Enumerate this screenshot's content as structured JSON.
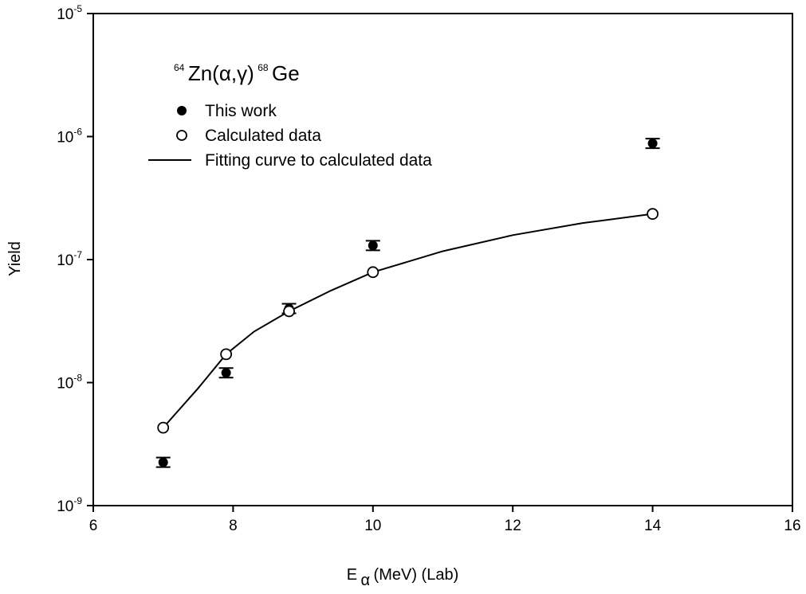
{
  "chart_data": {
    "type": "scatter",
    "title_parts": {
      "sup1": "64",
      "mid": "Zn(α,γ)",
      "sup2": "68",
      "end": "Ge"
    },
    "xlabel": {
      "main": "E",
      "sub": "α",
      "rest": " (MeV) (Lab)"
    },
    "ylabel": "Yield",
    "x_range": [
      6,
      16
    ],
    "x_ticks": [
      "6",
      "8",
      "10",
      "12",
      "14",
      "16"
    ],
    "y_scale": "log",
    "y_range": [
      1e-09,
      1e-05
    ],
    "y_ticks": [
      {
        "base": "10",
        "exp": "-9"
      },
      {
        "base": "10",
        "exp": "-8"
      },
      {
        "base": "10",
        "exp": "-7"
      },
      {
        "base": "10",
        "exp": "-6"
      },
      {
        "base": "10",
        "exp": "-5"
      }
    ],
    "grid": false,
    "legend_position": "top-left",
    "series": [
      {
        "name": "This work",
        "marker": "filled-circle",
        "error_bars": true,
        "points": [
          {
            "x": 7.0,
            "y": 2.25e-09
          },
          {
            "x": 7.9,
            "y": 1.2e-08
          },
          {
            "x": 8.8,
            "y": 4e-08
          },
          {
            "x": 10.0,
            "y": 1.3e-07
          },
          {
            "x": 14.0,
            "y": 8.8e-07
          }
        ]
      },
      {
        "name": "Calculated data",
        "marker": "open-circle",
        "points": [
          {
            "x": 7.0,
            "y": 4.3e-09
          },
          {
            "x": 7.9,
            "y": 1.7e-08
          },
          {
            "x": 8.8,
            "y": 3.8e-08
          },
          {
            "x": 10.0,
            "y": 7.9e-08
          },
          {
            "x": 14.0,
            "y": 2.35e-07
          }
        ]
      },
      {
        "name": "Fitting curve to calculated data",
        "marker": "line",
        "points": [
          {
            "x": 7.0,
            "y": 4.3e-09
          },
          {
            "x": 7.5,
            "y": 9e-09
          },
          {
            "x": 7.9,
            "y": 1.7e-08
          },
          {
            "x": 8.3,
            "y": 2.6e-08
          },
          {
            "x": 8.8,
            "y": 3.8e-08
          },
          {
            "x": 9.4,
            "y": 5.6e-08
          },
          {
            "x": 10.0,
            "y": 7.9e-08
          },
          {
            "x": 11.0,
            "y": 1.17e-07
          },
          {
            "x": 12.0,
            "y": 1.58e-07
          },
          {
            "x": 13.0,
            "y": 1.98e-07
          },
          {
            "x": 14.0,
            "y": 2.35e-07
          }
        ]
      }
    ]
  }
}
